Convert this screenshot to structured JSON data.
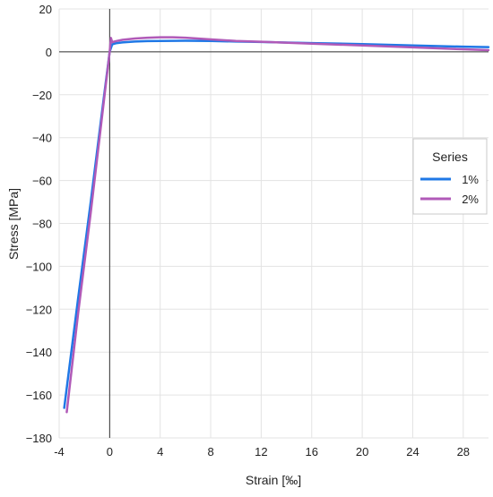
{
  "chart_data": {
    "type": "line",
    "title": "",
    "xlabel": "Strain [‰]",
    "ylabel": "Stress [MPa]",
    "xlim": [
      -4,
      30
    ],
    "ylim": [
      -180,
      20
    ],
    "x_ticks": [
      -4,
      0,
      4,
      8,
      12,
      16,
      20,
      24,
      28
    ],
    "y_ticks": [
      20,
      0,
      -20,
      -40,
      -60,
      -80,
      -100,
      -120,
      -140,
      -160,
      -180
    ],
    "grid": true,
    "legend": {
      "title": "Series",
      "position": "right"
    },
    "series": [
      {
        "name": "1%",
        "color": "#1f78e6",
        "x": [
          -3.6,
          -2.5,
          -1.5,
          -0.5,
          0,
          0.2,
          0.5,
          1,
          2,
          3,
          4,
          6,
          8,
          10,
          12,
          16,
          20,
          24,
          28,
          30
        ],
        "y": [
          -166,
          -115,
          -70,
          -23,
          0,
          3.5,
          4.0,
          4.4,
          4.8,
          5.0,
          5.1,
          5.2,
          5.1,
          4.8,
          4.6,
          4.1,
          3.6,
          3.0,
          2.4,
          2.2
        ]
      },
      {
        "name": "2%",
        "color": "#b05ab8",
        "x": [
          -3.4,
          -2.5,
          -1.5,
          -0.5,
          0,
          0.1,
          0.2,
          0.5,
          1,
          2,
          3,
          4,
          5,
          6,
          8,
          10,
          12,
          16,
          20,
          24,
          28,
          30
        ],
        "y": [
          -168,
          -122,
          -75,
          -25,
          0,
          6.5,
          4.5,
          5.0,
          5.6,
          6.2,
          6.6,
          6.8,
          6.8,
          6.6,
          5.8,
          5.1,
          4.7,
          3.8,
          3.0,
          2.1,
          1.2,
          0.8
        ]
      }
    ]
  }
}
